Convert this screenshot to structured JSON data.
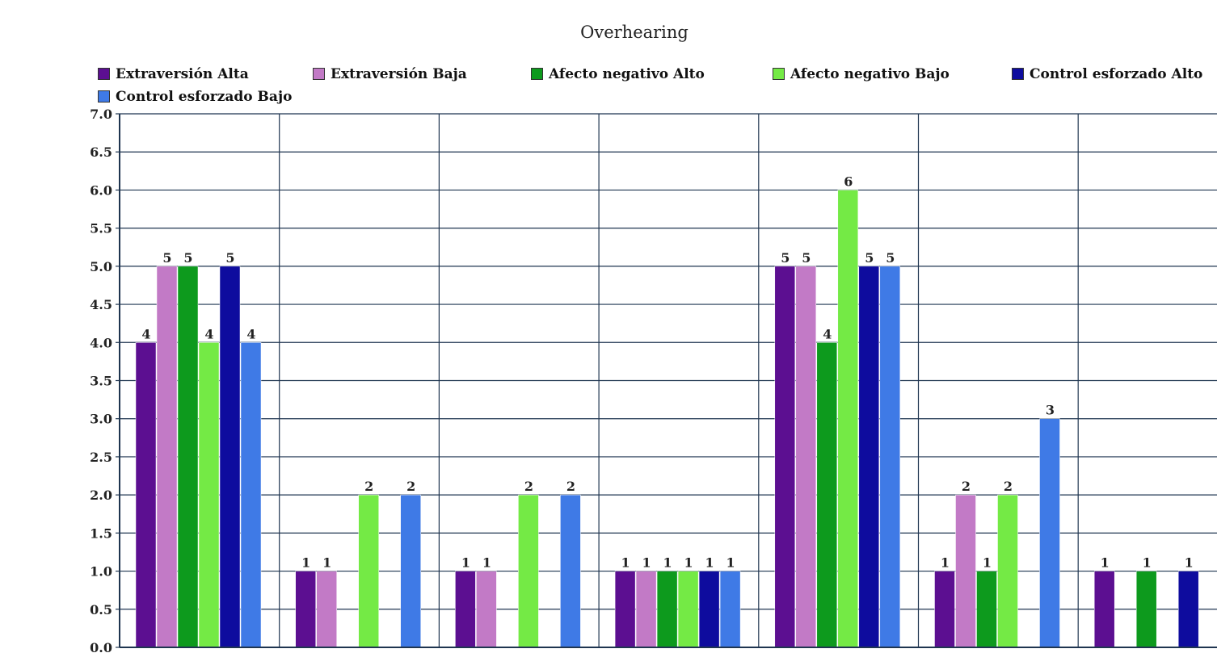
{
  "chart_data": {
    "type": "bar",
    "title": "Overhearing",
    "xlabel": "",
    "ylabel": "",
    "ylim": [
      0,
      7
    ],
    "yticks": [
      "0.0",
      "0.5",
      "1.0",
      "1.5",
      "2.0",
      "2.5",
      "3.0",
      "3.5",
      "4.0",
      "4.5",
      "5.0",
      "5.5",
      "6.0",
      "6.5",
      "7.0"
    ],
    "grid": true,
    "legend_position": "top",
    "categories": [
      "",
      "",
      "",
      "",
      "",
      "",
      ""
    ],
    "series": [
      {
        "name": "Extraversión Alta",
        "color": "#5c0f91",
        "values": [
          4,
          1,
          1,
          1,
          5,
          1,
          1
        ]
      },
      {
        "name": "Extraversión Baja",
        "color": "#c27ac6",
        "values": [
          5,
          1,
          1,
          1,
          5,
          2,
          0
        ]
      },
      {
        "name": "Afecto negativo Alto",
        "color": "#0d9a1d",
        "values": [
          5,
          0,
          0,
          1,
          4,
          1,
          1
        ]
      },
      {
        "name": "Afecto negativo Bajo",
        "color": "#74ea45",
        "values": [
          4,
          2,
          2,
          1,
          6,
          2,
          0
        ]
      },
      {
        "name": "Control esforzado Alto",
        "color": "#0e0c9e",
        "values": [
          5,
          0,
          0,
          1,
          5,
          0,
          1
        ]
      },
      {
        "name": "Control esforzado Bajo",
        "color": "#3f7ae6",
        "values": [
          4,
          2,
          2,
          1,
          5,
          3,
          0
        ]
      }
    ]
  }
}
